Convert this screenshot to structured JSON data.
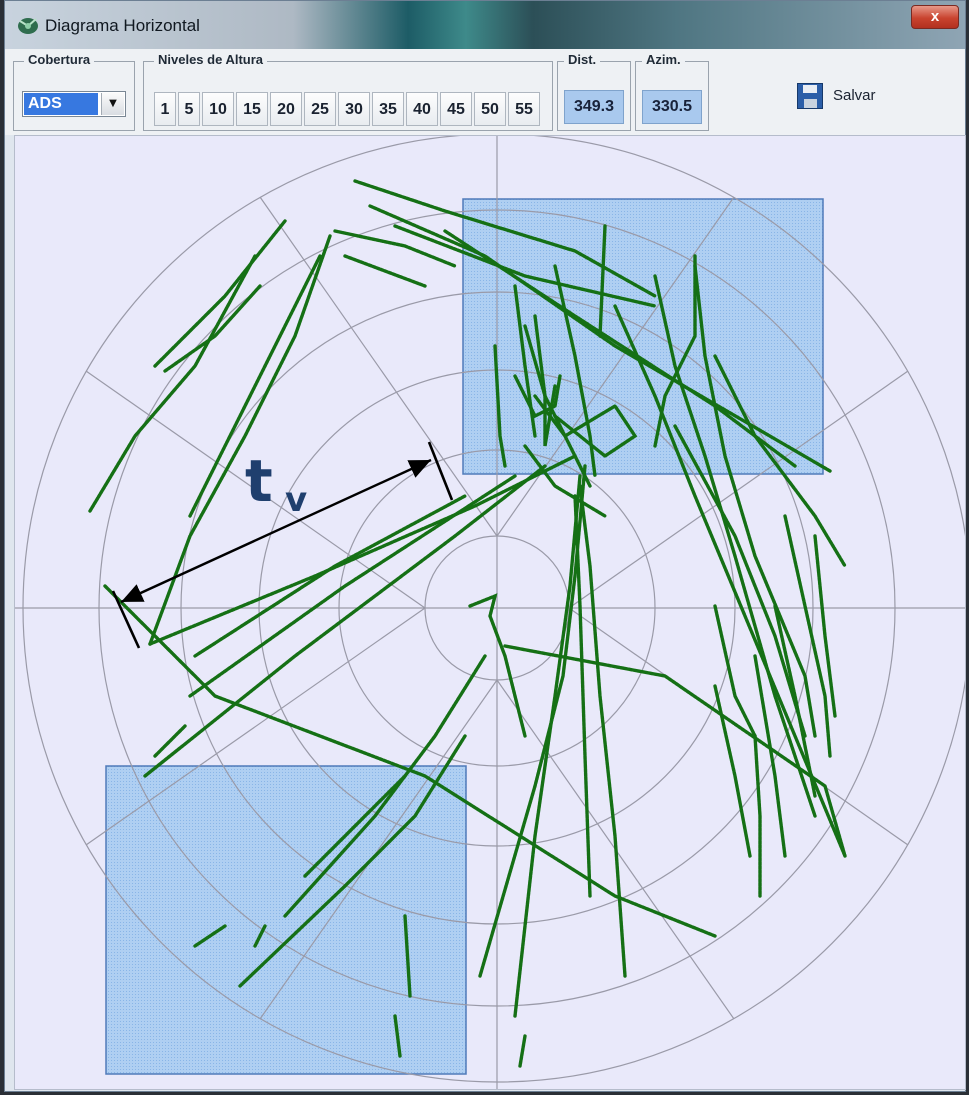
{
  "window": {
    "title": "Diagrama Horizontal",
    "close_label": "x",
    "icon": "radar-app-icon"
  },
  "toolbar": {
    "cobertura": {
      "legend": "Cobertura",
      "selected": "ADS"
    },
    "niveles": {
      "legend": "Niveles de Altura",
      "levels": [
        "1",
        "5",
        "10",
        "15",
        "20",
        "25",
        "30",
        "35",
        "40",
        "45",
        "50",
        "55"
      ]
    },
    "dist": {
      "legend": "Dist.",
      "value": "349.3"
    },
    "azim": {
      "legend": "Azim.",
      "value": "330.5"
    },
    "save": {
      "label": "Salvar",
      "icon": "floppy-disk-icon"
    }
  },
  "plot": {
    "track_color": "#157015",
    "highlight_fill": "#9cc3ee",
    "annotation_label": "t",
    "annotation_subscript": "v",
    "annotation_color": "#1f3f6e"
  }
}
